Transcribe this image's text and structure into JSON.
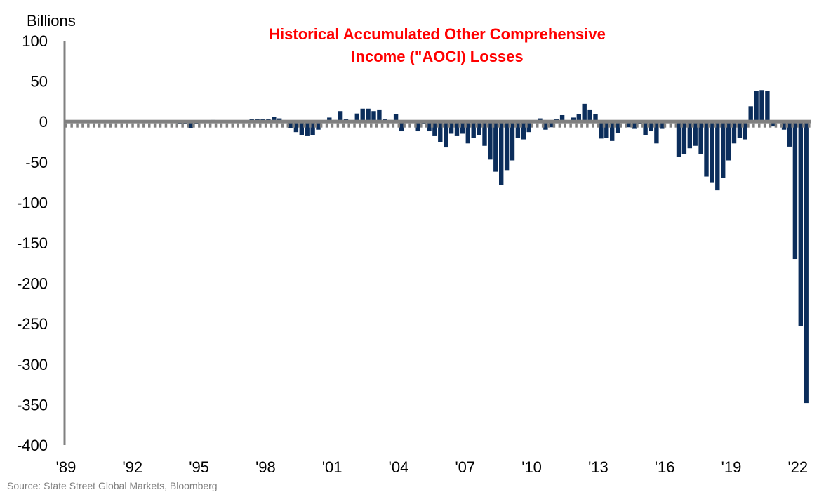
{
  "chart_data": {
    "type": "bar",
    "title_lines": [
      "Historical Accumulated Other Comprehensive",
      "Income (\"AOCI) Losses"
    ],
    "ylabel": "Billions",
    "xlabel": "",
    "ylim": [
      -400,
      100
    ],
    "yticks": [
      "100",
      "50",
      "0",
      "-50",
      "-100",
      "-150",
      "-200",
      "-250",
      "-300",
      "-350",
      "-400"
    ],
    "ytick_values": [
      100,
      50,
      0,
      -50,
      -100,
      -150,
      -200,
      -250,
      -300,
      -350,
      -400
    ],
    "xticks": [
      "'89",
      "'92",
      "'95",
      "'98",
      "'01",
      "'04",
      "'07",
      "'10",
      "'13",
      "'16",
      "'19",
      "'22"
    ],
    "x_start": "1989Q1",
    "frequency": "quarterly",
    "grid": false,
    "legend": "none",
    "values": [
      0,
      0,
      0,
      0,
      0,
      0,
      0,
      0,
      0,
      0,
      0,
      0,
      0,
      0,
      0,
      0,
      0,
      0,
      0,
      0,
      -3,
      -3,
      -8,
      -3,
      0,
      0,
      2,
      0,
      -1,
      0,
      0,
      0,
      0,
      3,
      3,
      3,
      3,
      6,
      4,
      0,
      -8,
      -13,
      -17,
      -18,
      -17,
      -10,
      0,
      5,
      2,
      13,
      3,
      0,
      10,
      16,
      16,
      13,
      15,
      3,
      2,
      9,
      -12,
      0,
      0,
      -12,
      -3,
      -12,
      -18,
      -25,
      -32,
      -15,
      -18,
      -15,
      -27,
      -20,
      -17,
      -30,
      -47,
      -62,
      -78,
      -60,
      -48,
      -20,
      -22,
      -13,
      0,
      4,
      -10,
      -7,
      3,
      8,
      0,
      5,
      9,
      22,
      15,
      9,
      -21,
      -20,
      -24,
      -14,
      -1,
      -7,
      -9,
      -3,
      -17,
      -12,
      -27,
      -9,
      0,
      -2,
      -44,
      -40,
      -33,
      -30,
      -40,
      -68,
      -75,
      -85,
      -70,
      -48,
      -27,
      -20,
      -22,
      19,
      38,
      39,
      38,
      -6,
      0,
      -10,
      -31,
      -170,
      -253,
      -348
    ],
    "colors": {
      "bars": "#0b2d5b",
      "axis": "#808080",
      "title": "#ff0000"
    }
  },
  "source": "Source: State Street Global Markets, Bloomberg"
}
